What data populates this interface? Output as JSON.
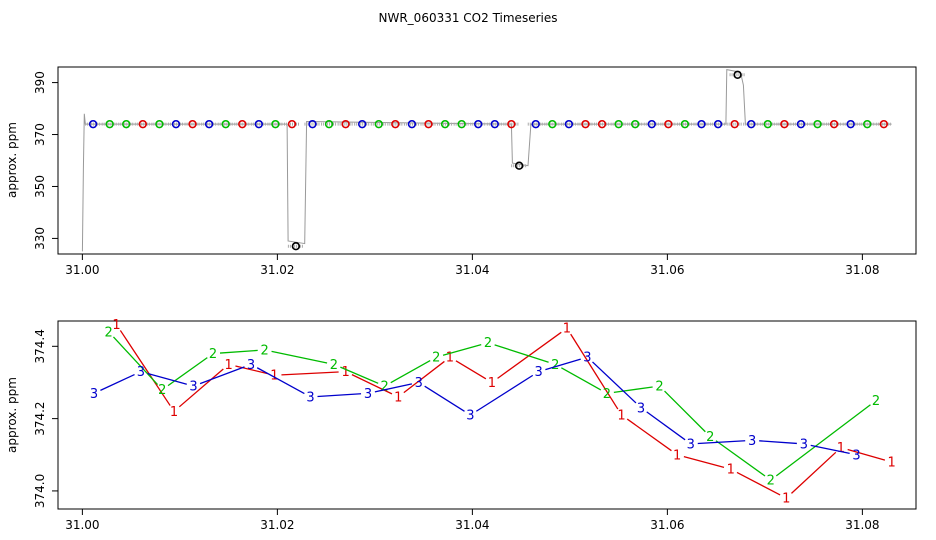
{
  "chart_data": [
    {
      "type": "scatter",
      "title": "NWR_060331  CO2 Timeseries",
      "xlabel": "",
      "ylabel": "approx. ppm",
      "xlim": [
        30.9975,
        31.0855
      ],
      "ylim": [
        324,
        396
      ],
      "x_ticks": [
        "31.00",
        "31.02",
        "31.04",
        "31.06",
        "31.08"
      ],
      "x_tick_values": [
        31.0,
        31.02,
        31.04,
        31.06,
        31.08
      ],
      "y_ticks": [
        "330",
        "350",
        "370",
        "390"
      ],
      "y_tick_values": [
        330,
        350,
        370,
        390
      ],
      "colors": {
        "1": "#dd0000",
        "2": "#00bb00",
        "3": "#0000cc",
        "other": "#000000",
        "trace": "#999999"
      },
      "trace": [
        [
          31.0,
          325
        ],
        [
          31.0001,
          357
        ],
        [
          31.0002,
          378
        ],
        [
          31.0003,
          374
        ],
        [
          31.021,
          374
        ],
        [
          31.0211,
          329
        ],
        [
          31.0228,
          328
        ],
        [
          31.023,
          375
        ],
        [
          31.044,
          374
        ],
        [
          31.0441,
          359
        ],
        [
          31.0457,
          358
        ],
        [
          31.046,
          374
        ],
        [
          31.066,
          374
        ],
        [
          31.0661,
          395
        ],
        [
          31.0675,
          394
        ],
        [
          31.0678,
          389
        ],
        [
          31.068,
          374
        ],
        [
          31.083,
          374
        ]
      ],
      "points": [
        {
          "x": 31.0011,
          "y": 374,
          "g": "3"
        },
        {
          "x": 31.0028,
          "y": 374,
          "g": "2"
        },
        {
          "x": 31.0045,
          "y": 374,
          "g": "2"
        },
        {
          "x": 31.0062,
          "y": 374,
          "g": "1"
        },
        {
          "x": 31.0079,
          "y": 374,
          "g": "2"
        },
        {
          "x": 31.0096,
          "y": 374,
          "g": "3"
        },
        {
          "x": 31.0113,
          "y": 374,
          "g": "1"
        },
        {
          "x": 31.013,
          "y": 374,
          "g": "3"
        },
        {
          "x": 31.0147,
          "y": 374,
          "g": "2"
        },
        {
          "x": 31.0164,
          "y": 374,
          "g": "1"
        },
        {
          "x": 31.0181,
          "y": 374,
          "g": "3"
        },
        {
          "x": 31.0198,
          "y": 374,
          "g": "2"
        },
        {
          "x": 31.0215,
          "y": 374,
          "g": "1"
        },
        {
          "x": 31.0219,
          "y": 327,
          "g": "other"
        },
        {
          "x": 31.0236,
          "y": 374,
          "g": "3"
        },
        {
          "x": 31.0253,
          "y": 374,
          "g": "2"
        },
        {
          "x": 31.027,
          "y": 374,
          "g": "1"
        },
        {
          "x": 31.0287,
          "y": 374,
          "g": "3"
        },
        {
          "x": 31.0304,
          "y": 374,
          "g": "2"
        },
        {
          "x": 31.0321,
          "y": 374,
          "g": "1"
        },
        {
          "x": 31.0338,
          "y": 374,
          "g": "3"
        },
        {
          "x": 31.0355,
          "y": 374,
          "g": "1"
        },
        {
          "x": 31.0372,
          "y": 374,
          "g": "2"
        },
        {
          "x": 31.0389,
          "y": 374,
          "g": "2"
        },
        {
          "x": 31.0406,
          "y": 374,
          "g": "3"
        },
        {
          "x": 31.0423,
          "y": 374,
          "g": "3"
        },
        {
          "x": 31.044,
          "y": 374,
          "g": "1"
        },
        {
          "x": 31.0448,
          "y": 358,
          "g": "other"
        },
        {
          "x": 31.0465,
          "y": 374,
          "g": "3"
        },
        {
          "x": 31.0482,
          "y": 374,
          "g": "2"
        },
        {
          "x": 31.0499,
          "y": 374,
          "g": "3"
        },
        {
          "x": 31.0516,
          "y": 374,
          "g": "1"
        },
        {
          "x": 31.0533,
          "y": 374,
          "g": "1"
        },
        {
          "x": 31.055,
          "y": 374,
          "g": "2"
        },
        {
          "x": 31.0567,
          "y": 374,
          "g": "2"
        },
        {
          "x": 31.0584,
          "y": 374,
          "g": "3"
        },
        {
          "x": 31.0601,
          "y": 374,
          "g": "1"
        },
        {
          "x": 31.0618,
          "y": 374,
          "g": "2"
        },
        {
          "x": 31.0635,
          "y": 374,
          "g": "3"
        },
        {
          "x": 31.0652,
          "y": 374,
          "g": "3"
        },
        {
          "x": 31.0669,
          "y": 374,
          "g": "1"
        },
        {
          "x": 31.0672,
          "y": 393,
          "g": "other"
        },
        {
          "x": 31.0686,
          "y": 374,
          "g": "3"
        },
        {
          "x": 31.0703,
          "y": 374,
          "g": "2"
        },
        {
          "x": 31.072,
          "y": 374,
          "g": "1"
        },
        {
          "x": 31.0737,
          "y": 374,
          "g": "3"
        },
        {
          "x": 31.0754,
          "y": 374,
          "g": "2"
        },
        {
          "x": 31.0771,
          "y": 374,
          "g": "1"
        },
        {
          "x": 31.0788,
          "y": 374,
          "g": "3"
        },
        {
          "x": 31.0805,
          "y": 374,
          "g": "2"
        },
        {
          "x": 31.0822,
          "y": 374,
          "g": "1"
        }
      ]
    },
    {
      "type": "line",
      "xlabel": "",
      "ylabel": "approx. ppm",
      "xlim": [
        30.9975,
        31.0855
      ],
      "ylim": [
        373.95,
        374.47
      ],
      "x_ticks": [
        "31.00",
        "31.02",
        "31.04",
        "31.06",
        "31.08"
      ],
      "x_tick_values": [
        31.0,
        31.02,
        31.04,
        31.06,
        31.08
      ],
      "y_ticks": [
        "374.0",
        "374.2",
        "374.4"
      ],
      "y_tick_values": [
        374.0,
        374.2,
        374.4
      ],
      "series": [
        {
          "name": "1",
          "color": "#dd0000",
          "x": [
            31.0035,
            31.0094,
            31.015,
            31.0197,
            31.027,
            31.0324,
            31.0377,
            31.042,
            31.0497,
            31.0553,
            31.061,
            31.0665,
            31.0722,
            31.0778,
            31.083
          ],
          "y": [
            374.46,
            374.22,
            374.35,
            374.32,
            374.33,
            374.26,
            374.37,
            374.3,
            374.45,
            374.21,
            374.1,
            374.06,
            373.98,
            374.12,
            374.08
          ]
        },
        {
          "name": "2",
          "color": "#00bb00",
          "x": [
            31.0027,
            31.0082,
            31.0134,
            31.0187,
            31.0258,
            31.031,
            31.0363,
            31.0416,
            31.0485,
            31.0538,
            31.0592,
            31.0644,
            31.0706,
            31.0814
          ],
          "y": [
            374.44,
            374.28,
            374.38,
            374.39,
            374.35,
            374.29,
            374.37,
            374.41,
            374.35,
            374.27,
            374.29,
            374.15,
            374.03,
            374.25
          ]
        },
        {
          "name": "3",
          "color": "#0000cc",
          "x": [
            31.0012,
            31.006,
            31.0114,
            31.0173,
            31.0234,
            31.0293,
            31.0345,
            31.0398,
            31.0468,
            31.0518,
            31.0573,
            31.0624,
            31.0687,
            31.074,
            31.0794
          ],
          "y": [
            374.27,
            374.33,
            374.29,
            374.35,
            374.26,
            374.27,
            374.3,
            374.21,
            374.33,
            374.37,
            374.23,
            374.13,
            374.14,
            374.13,
            374.1
          ]
        }
      ]
    }
  ]
}
